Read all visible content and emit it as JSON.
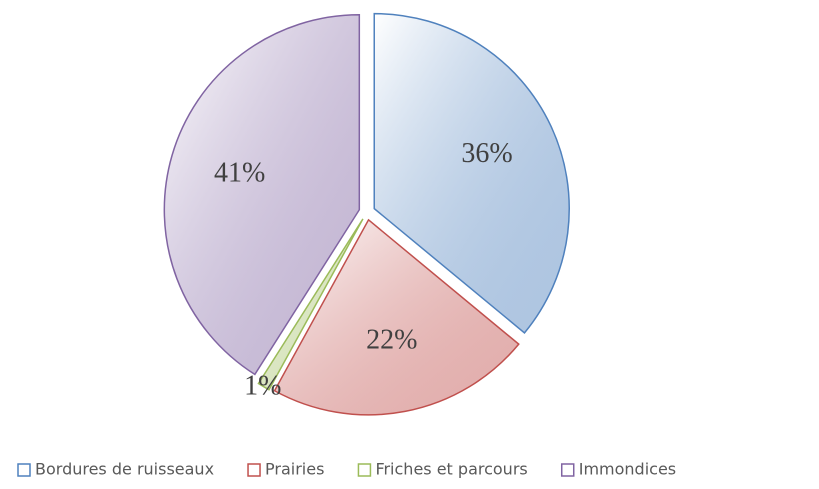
{
  "chart_data": {
    "type": "pie",
    "categories": [
      "Bordures de ruisseaux",
      "Prairies",
      "Friches et parcours",
      "Immondices"
    ],
    "values": [
      36,
      22,
      1,
      41
    ],
    "value_labels": [
      "36%",
      "22%",
      "1%",
      "41%"
    ],
    "colors": [
      "#4f81bd",
      "#c0504d",
      "#9bbb59",
      "#8064a2"
    ],
    "legend": "bottom"
  }
}
